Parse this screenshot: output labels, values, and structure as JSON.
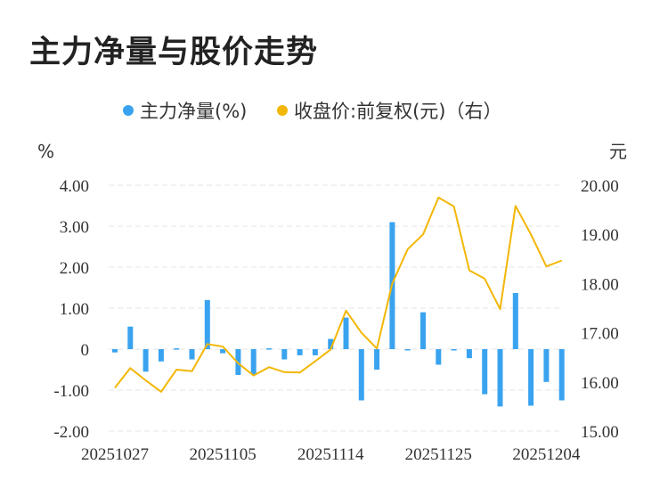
{
  "title": "主力净量与股价走势",
  "colors": {
    "bar": "#3aa3f0",
    "line": "#f2b705",
    "grid": "#e6e6e6",
    "text": "#333333"
  },
  "chart_data": {
    "type": "bar+line",
    "title": "主力净量与股价走势",
    "left_unit": "%",
    "right_unit": "元",
    "legend": [
      {
        "name": "主力净量(%)",
        "color": "#3aa3f0",
        "marker": "circle"
      },
      {
        "name": "收盘价:前复权(元)（右）",
        "color": "#f2b705",
        "marker": "circle"
      }
    ],
    "x_tick_labels": [
      "20251027",
      "20251105",
      "20251114",
      "20251125",
      "20251204"
    ],
    "x_tick_index": [
      0,
      7,
      14,
      21,
      28
    ],
    "y_left": {
      "min": -2,
      "max": 4,
      "ticks": [
        "4.00",
        "3.00",
        "2.00",
        "1.00",
        "0",
        "-1.00",
        "-2.00"
      ]
    },
    "y_right": {
      "min": 15,
      "max": 20,
      "ticks": [
        "20.00",
        "19.00",
        "18.00",
        "17.00",
        "16.00",
        "15.00"
      ]
    },
    "series": [
      {
        "name": "主力净量(%)",
        "kind": "bar",
        "axis": "left",
        "values": [
          -0.08,
          0.55,
          -0.55,
          -0.3,
          0.02,
          -0.25,
          1.2,
          -0.1,
          -0.63,
          -0.62,
          0.02,
          -0.25,
          -0.15,
          -0.15,
          0.25,
          0.77,
          -1.25,
          -0.5,
          3.1,
          -0.02,
          0.9,
          -0.38,
          -0.02,
          -0.22,
          -1.1,
          -1.4,
          1.37,
          -1.38,
          -0.8,
          -1.25
        ]
      },
      {
        "name": "收盘价:前复权(元)（右）",
        "kind": "line",
        "axis": "right",
        "values": [
          15.88,
          16.28,
          16.03,
          15.8,
          16.25,
          16.22,
          16.77,
          16.72,
          16.38,
          16.13,
          16.3,
          16.2,
          16.19,
          16.42,
          16.66,
          17.45,
          17.0,
          16.68,
          18.0,
          18.7,
          19.0,
          19.75,
          19.57,
          18.27,
          18.1,
          17.48,
          19.58,
          19.0,
          18.35,
          18.47
        ]
      }
    ]
  }
}
